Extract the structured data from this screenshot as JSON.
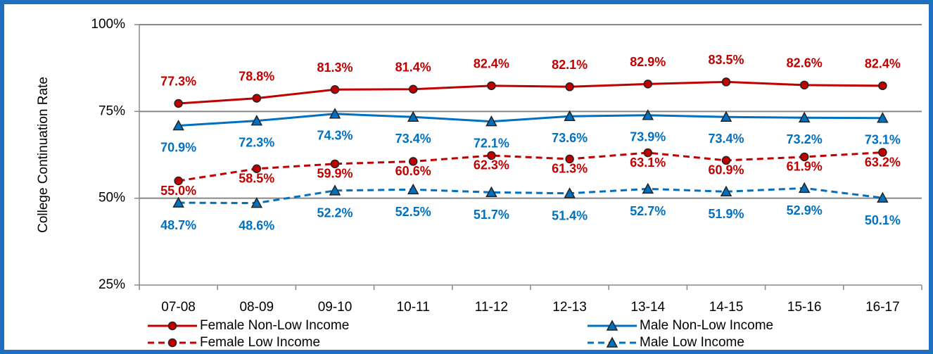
{
  "chart_data": {
    "type": "line",
    "y_label": "College Continuation Rate",
    "categories": [
      "07-08",
      "08-09",
      "09-10",
      "10-11",
      "11-12",
      "12-13",
      "13-14",
      "14-15",
      "15-16",
      "16-17"
    ],
    "series": [
      {
        "name": "Female Non-Low Income",
        "color": "#c00000",
        "line_style": "solid",
        "marker": "circle",
        "values": [
          77.3,
          78.8,
          81.3,
          81.4,
          82.4,
          82.1,
          82.9,
          83.5,
          82.6,
          82.4
        ],
        "value_labels": [
          "77.3%",
          "78.8%",
          "81.3%",
          "81.4%",
          "82.4%",
          "82.1%",
          "82.9%",
          "83.5%",
          "82.6%",
          "82.4%"
        ]
      },
      {
        "name": "Male Non-Low Income",
        "color": "#0070c0",
        "line_style": "solid",
        "marker": "triangle",
        "values": [
          70.9,
          72.3,
          74.3,
          73.4,
          72.1,
          73.6,
          73.9,
          73.4,
          73.2,
          73.1
        ],
        "value_labels": [
          "70.9%",
          "72.3%",
          "74.3%",
          "73.4%",
          "72.1%",
          "73.6%",
          "73.9%",
          "73.4%",
          "73.2%",
          "73.1%"
        ]
      },
      {
        "name": "Female Low Income",
        "color": "#c00000",
        "line_style": "dashed",
        "marker": "circle",
        "values": [
          55.0,
          58.5,
          59.9,
          60.6,
          62.3,
          61.3,
          63.1,
          60.9,
          61.9,
          63.2
        ],
        "value_labels": [
          "55.0%",
          "58.5%",
          "59.9%",
          "60.6%",
          "62.3%",
          "61.3%",
          "63.1%",
          "60.9%",
          "61.9%",
          "63.2%"
        ]
      },
      {
        "name": "Male Low Income",
        "color": "#0070c0",
        "line_style": "dashed",
        "marker": "triangle",
        "values": [
          48.7,
          48.6,
          52.2,
          52.5,
          51.7,
          51.4,
          52.7,
          51.9,
          52.9,
          50.1
        ],
        "value_labels": [
          "48.7%",
          "48.6%",
          "52.2%",
          "52.5%",
          "51.7%",
          "51.4%",
          "52.7%",
          "51.9%",
          "52.9%",
          "50.1%"
        ]
      }
    ],
    "ylim": [
      25,
      100
    ],
    "yticks": [
      {
        "value": 25,
        "label": "25%"
      },
      {
        "value": 50,
        "label": "50%"
      },
      {
        "value": 75,
        "label": "75%"
      },
      {
        "value": 100,
        "label": "100%"
      }
    ],
    "grid": true
  }
}
